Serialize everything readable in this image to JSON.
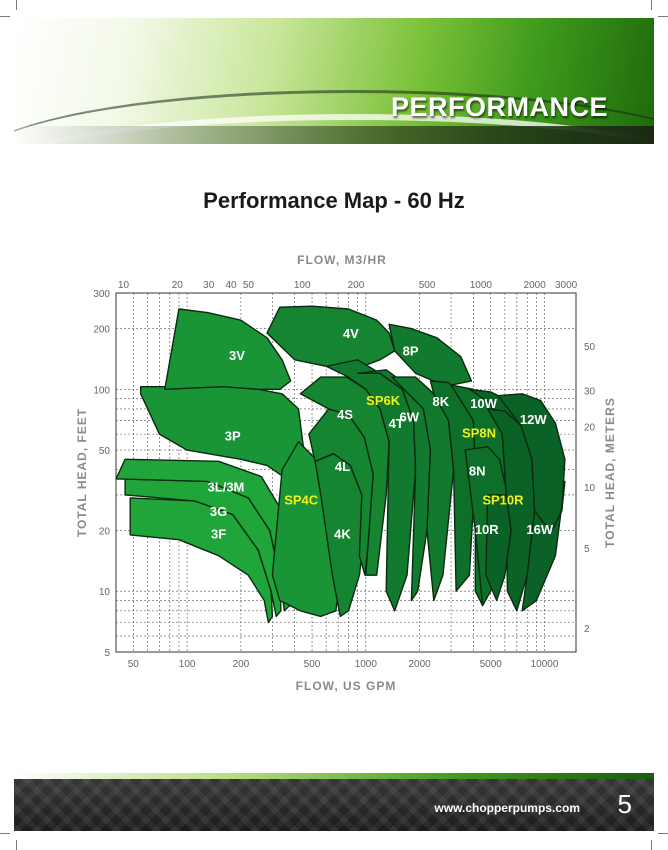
{
  "header": {
    "title": "PERFORMANCE"
  },
  "footer": {
    "url": "www.chopperpumps.com",
    "page_number": "5"
  },
  "chart_data": {
    "type": "area",
    "title": "Performance Map - 60 Hz",
    "xlabel": "FLOW, US GPM",
    "ylabel": "TOTAL HEAD, FEET",
    "x2label": "FLOW, M3/HR",
    "y2label": "TOTAL HEAD, METERS",
    "x_scale": "log",
    "y_scale": "log",
    "xlim": [
      40,
      15000
    ],
    "ylim": [
      5,
      300
    ],
    "x2lim": [
      9.08,
      3407
    ],
    "y2lim": [
      1.524,
      91.44
    ],
    "x_ticks": [
      50,
      100,
      200,
      500,
      1000,
      2000,
      5000,
      10000
    ],
    "x_tick_labels": [
      "50",
      "100",
      "200",
      "500",
      "1000",
      "2000",
      "5000",
      "10000"
    ],
    "y_ticks": [
      5,
      10,
      20,
      50,
      100,
      200,
      300
    ],
    "y_tick_labels": [
      "5",
      "10",
      "20",
      "50",
      "100",
      "200",
      "300"
    ],
    "x2_ticks": [
      10,
      20,
      30,
      40,
      50,
      100,
      200,
      500,
      1000,
      2000,
      3000
    ],
    "x2_tick_labels": [
      "10",
      "20",
      "30",
      "40",
      "50",
      "100",
      "200",
      "500",
      "1000",
      "2000",
      "3000"
    ],
    "y2_ticks": [
      2,
      5,
      10,
      20,
      30,
      50
    ],
    "y2_tick_labels": [
      "2",
      "5",
      "10",
      "20",
      "30",
      "50"
    ],
    "grid": true,
    "colors": [
      "#1fa53a",
      "#199436",
      "#158532",
      "#117a2e",
      "#0e6f2b",
      "#0b6227"
    ],
    "highlight_color": "#f2f21a",
    "regions": [
      {
        "label": "3F",
        "label_color": "white",
        "shade": 0,
        "label_at": [
          150,
          19
        ],
        "points": [
          [
            48,
            19
          ],
          [
            90,
            18
          ],
          [
            150,
            15
          ],
          [
            220,
            12
          ],
          [
            270,
            9
          ],
          [
            285,
            7
          ],
          [
            300,
            7.5
          ],
          [
            295,
            10
          ],
          [
            250,
            16
          ],
          [
            180,
            24
          ],
          [
            110,
            28
          ],
          [
            48,
            29
          ]
        ]
      },
      {
        "label": "3G",
        "label_color": "white",
        "shade": 0,
        "label_at": [
          150,
          24.5
        ],
        "points": [
          [
            45,
            30
          ],
          [
            110,
            28
          ],
          [
            180,
            24
          ],
          [
            250,
            16
          ],
          [
            295,
            10
          ],
          [
            315,
            7.5
          ],
          [
            335,
            8
          ],
          [
            330,
            12
          ],
          [
            290,
            20
          ],
          [
            220,
            29
          ],
          [
            130,
            35
          ],
          [
            45,
            36
          ]
        ]
      },
      {
        "label": "3L/3M",
        "label_color": "white",
        "shade": 0,
        "label_at": [
          165,
          32.5
        ],
        "points": [
          [
            40,
            36
          ],
          [
            130,
            35
          ],
          [
            220,
            29
          ],
          [
            290,
            20
          ],
          [
            330,
            12
          ],
          [
            350,
            8
          ],
          [
            400,
            9
          ],
          [
            380,
            15
          ],
          [
            330,
            26
          ],
          [
            260,
            37
          ],
          [
            150,
            44
          ],
          [
            45,
            45
          ]
        ]
      },
      {
        "label": "3P",
        "label_color": "white",
        "shade": 1,
        "label_at": [
          180,
          58
        ],
        "points": [
          [
            55,
            95
          ],
          [
            70,
            60
          ],
          [
            100,
            50
          ],
          [
            200,
            45
          ],
          [
            280,
            42
          ],
          [
            360,
            36
          ],
          [
            420,
            22
          ],
          [
            430,
            20
          ],
          [
            450,
            50
          ],
          [
            420,
            80
          ],
          [
            340,
            95
          ],
          [
            250,
            100
          ],
          [
            160,
            103
          ],
          [
            55,
            103
          ]
        ]
      },
      {
        "label": "3V",
        "label_color": "white",
        "shade": 1,
        "label_at": [
          190,
          145
        ],
        "points": [
          [
            75,
            100
          ],
          [
            90,
            250
          ],
          [
            130,
            240
          ],
          [
            200,
            220
          ],
          [
            280,
            180
          ],
          [
            340,
            140
          ],
          [
            380,
            110
          ],
          [
            330,
            100
          ],
          [
            250,
            100
          ],
          [
            160,
            103
          ],
          [
            75,
            100
          ]
        ]
      },
      {
        "label": "SP4C",
        "label_color": "yellow",
        "shade": 1,
        "label_at": [
          435,
          28
        ],
        "points": [
          [
            300,
            12
          ],
          [
            340,
            40
          ],
          [
            420,
            55
          ],
          [
            540,
            44
          ],
          [
            650,
            30
          ],
          [
            720,
            12
          ],
          [
            680,
            8
          ],
          [
            560,
            7.5
          ],
          [
            430,
            8
          ],
          [
            330,
            9
          ]
        ]
      },
      {
        "label": "4K",
        "label_color": "white",
        "shade": 2,
        "label_at": [
          740,
          19
        ],
        "points": [
          [
            520,
            44
          ],
          [
            660,
            48
          ],
          [
            820,
            42
          ],
          [
            950,
            30
          ],
          [
            990,
            20
          ],
          [
            920,
            12
          ],
          [
            800,
            8
          ],
          [
            720,
            7.5
          ],
          [
            650,
            12
          ],
          [
            560,
            30
          ]
        ]
      },
      {
        "label": "4L",
        "label_color": "white",
        "shade": 2,
        "label_at": [
          740,
          41
        ],
        "points": [
          [
            480,
            60
          ],
          [
            620,
            80
          ],
          [
            800,
            75
          ],
          [
            980,
            58
          ],
          [
            1100,
            38
          ],
          [
            1050,
            20
          ],
          [
            990,
            12
          ],
          [
            920,
            15
          ],
          [
            950,
            30
          ],
          [
            820,
            42
          ],
          [
            660,
            48
          ],
          [
            520,
            44
          ]
        ]
      },
      {
        "label": "4S",
        "label_color": "white",
        "shade": 2,
        "label_at": [
          765,
          74
        ],
        "points": [
          [
            430,
            95
          ],
          [
            560,
            115
          ],
          [
            780,
            115
          ],
          [
            1000,
            100
          ],
          [
            1200,
            80
          ],
          [
            1350,
            55
          ],
          [
            1300,
            30
          ],
          [
            1150,
            12
          ],
          [
            1000,
            12
          ],
          [
            1100,
            38
          ],
          [
            980,
            58
          ],
          [
            800,
            75
          ],
          [
            620,
            80
          ]
        ]
      },
      {
        "label": "4V",
        "label_color": "white",
        "shade": 2,
        "label_at": [
          825,
          187
        ],
        "points": [
          [
            280,
            190
          ],
          [
            330,
            255
          ],
          [
            500,
            258
          ],
          [
            800,
            250
          ],
          [
            1150,
            220
          ],
          [
            1350,
            190
          ],
          [
            1450,
            155
          ],
          [
            1200,
            140
          ],
          [
            850,
            125
          ],
          [
            600,
            130
          ],
          [
            400,
            140
          ]
        ]
      },
      {
        "label": "SP6K",
        "label_color": "yellow",
        "shade": 3,
        "label_at": [
          1250,
          87
        ],
        "points": [
          [
            600,
            130
          ],
          [
            900,
            140
          ],
          [
            1200,
            120
          ],
          [
            1600,
            100
          ],
          [
            1850,
            70
          ],
          [
            1900,
            40
          ],
          [
            1700,
            12
          ],
          [
            1450,
            8
          ],
          [
            1300,
            10
          ],
          [
            1350,
            55
          ],
          [
            1200,
            80
          ],
          [
            1000,
            100
          ],
          [
            800,
            115
          ]
        ]
      },
      {
        "label": "4T",
        "label_color": "white",
        "shade": 3,
        "label_at": [
          1480,
          67
        ],
        "points": [
          [
            900,
            120
          ],
          [
            1300,
            125
          ],
          [
            1700,
            105
          ],
          [
            2100,
            80
          ],
          [
            2300,
            50
          ],
          [
            2200,
            20
          ],
          [
            1950,
            10
          ],
          [
            1800,
            9
          ],
          [
            1900,
            40
          ],
          [
            1850,
            70
          ],
          [
            1600,
            100
          ],
          [
            1200,
            120
          ]
        ]
      },
      {
        "label": "6W",
        "label_color": "white",
        "shade": 3,
        "label_at": [
          1750,
          72
        ],
        "points": [
          [
            1400,
            115
          ],
          [
            1900,
            115
          ],
          [
            2400,
            95
          ],
          [
            2900,
            70
          ],
          [
            3100,
            40
          ],
          [
            2700,
            12
          ],
          [
            2400,
            9
          ],
          [
            2200,
            20
          ],
          [
            2300,
            50
          ],
          [
            2100,
            80
          ]
        ]
      },
      {
        "label": "8P",
        "label_color": "white",
        "shade": 3,
        "label_at": [
          1780,
          153
        ],
        "points": [
          [
            1350,
            210
          ],
          [
            1800,
            200
          ],
          [
            2500,
            180
          ],
          [
            3400,
            145
          ],
          [
            3900,
            110
          ],
          [
            3000,
            105
          ],
          [
            2400,
            110
          ],
          [
            1900,
            120
          ],
          [
            1450,
            155
          ]
        ]
      },
      {
        "label": "8K",
        "label_color": "white",
        "shade": 4,
        "label_at": [
          2630,
          86
        ],
        "points": [
          [
            2300,
            110
          ],
          [
            2900,
            108
          ],
          [
            3600,
            92
          ],
          [
            4000,
            70
          ],
          [
            4100,
            40
          ],
          [
            3800,
            12
          ],
          [
            3200,
            10
          ],
          [
            3100,
            40
          ],
          [
            2900,
            70
          ],
          [
            2400,
            95
          ]
        ]
      },
      {
        "label": "SP8N",
        "label_color": "yellow",
        "shade": 4,
        "label_at": [
          4300,
          60
        ],
        "points": [
          [
            3000,
            105
          ],
          [
            4000,
            100
          ],
          [
            5000,
            85
          ],
          [
            5800,
            60
          ],
          [
            6100,
            30
          ],
          [
            5500,
            12
          ],
          [
            4500,
            8.5
          ],
          [
            4100,
            10
          ],
          [
            4100,
            40
          ],
          [
            4000,
            70
          ]
        ]
      },
      {
        "label": "8N",
        "label_color": "white",
        "shade": 4,
        "label_at": [
          4200,
          39
        ],
        "points": [
          [
            3600,
            50
          ],
          [
            4800,
            52
          ],
          [
            5600,
            45
          ],
          [
            6200,
            30
          ],
          [
            5800,
            15
          ],
          [
            5000,
            10
          ],
          [
            4500,
            8.5
          ],
          [
            4100,
            20
          ]
        ]
      },
      {
        "label": "10W",
        "label_color": "white",
        "shade": 5,
        "label_at": [
          4560,
          84
        ],
        "points": [
          [
            3800,
            100
          ],
          [
            5000,
            97
          ],
          [
            6300,
            88
          ],
          [
            7300,
            72
          ],
          [
            7500,
            40
          ],
          [
            6400,
            25
          ],
          [
            5800,
            60
          ],
          [
            5000,
            85
          ]
        ]
      },
      {
        "label": "SP10R",
        "label_color": "yellow",
        "shade": 5,
        "label_at": [
          5850,
          28
        ],
        "points": [
          [
            4800,
            80
          ],
          [
            6000,
            78
          ],
          [
            7400,
            66
          ],
          [
            8500,
            45
          ],
          [
            8800,
            25
          ],
          [
            8000,
            12
          ],
          [
            7000,
            8
          ],
          [
            6200,
            10
          ],
          [
            6100,
            30
          ],
          [
            5800,
            60
          ]
        ]
      },
      {
        "label": "10R",
        "label_color": "white",
        "shade": 5,
        "label_at": [
          4750,
          20
        ],
        "points": [
          [
            4800,
            30
          ],
          [
            6100,
            30
          ],
          [
            6500,
            20
          ],
          [
            6000,
            12
          ],
          [
            5400,
            9
          ],
          [
            4700,
            12
          ]
        ]
      },
      {
        "label": "12W",
        "label_color": "white",
        "shade": 5,
        "label_at": [
          8650,
          70
        ],
        "points": [
          [
            5500,
            93
          ],
          [
            7500,
            95
          ],
          [
            9500,
            88
          ],
          [
            11500,
            68
          ],
          [
            13000,
            45
          ],
          [
            12500,
            25
          ],
          [
            11000,
            20
          ],
          [
            9800,
            22
          ],
          [
            8800,
            25
          ],
          [
            8500,
            45
          ],
          [
            7400,
            66
          ]
        ]
      },
      {
        "label": "16W",
        "label_color": "white",
        "shade": 5,
        "label_at": [
          9400,
          20
        ],
        "points": [
          [
            8800,
            25
          ],
          [
            9800,
            22
          ],
          [
            11000,
            20
          ],
          [
            12500,
            25
          ],
          [
            13000,
            35
          ],
          [
            11500,
            15
          ],
          [
            9000,
            9
          ],
          [
            7500,
            8
          ],
          [
            8000,
            12
          ]
        ]
      }
    ]
  }
}
